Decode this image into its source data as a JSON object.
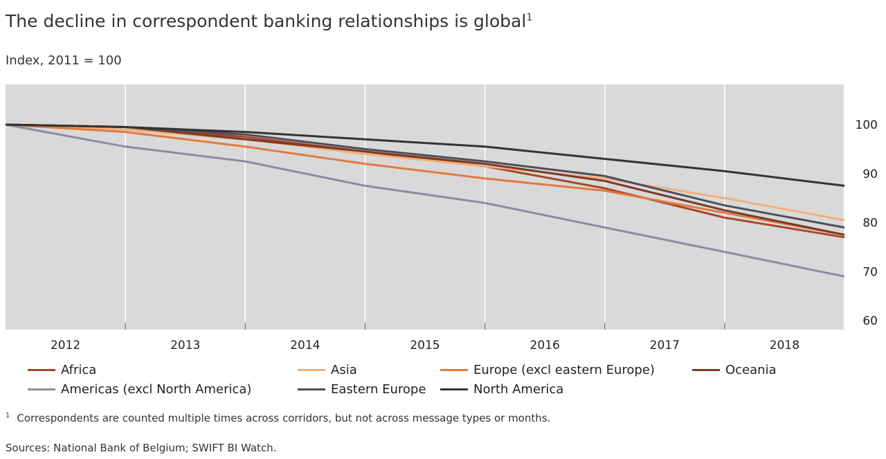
{
  "title": "The decline in correspondent banking relationships is global",
  "title_sup": "1",
  "subtitle": "Index, 2011 = 100",
  "footnote_marker": "1",
  "footnote": "Correspondents are counted multiple times across corridors, but not across message types or months.",
  "sources": "Sources: National Bank of Belgium; SWIFT BI Watch.",
  "chart_data": {
    "type": "line",
    "x_ticks": [
      "2012",
      "2013",
      "2014",
      "2015",
      "2016",
      "2017",
      "2018"
    ],
    "y_ticks": [
      "100",
      "90",
      "80",
      "70",
      "60"
    ],
    "xlim": [
      2011.0,
      2018.0
    ],
    "ylim": [
      60,
      105
    ],
    "grid": true,
    "background": "#d9d9d9",
    "legend_position": "bottom",
    "series": [
      {
        "name": "Africa",
        "color": "#a8472a",
        "x": [
          2011.0,
          2012.0,
          2013.0,
          2014.0,
          2015.0,
          2016.0,
          2017.0,
          2018.0
        ],
        "y": [
          100,
          99.5,
          97.5,
          94.5,
          91.5,
          87,
          81,
          77
        ]
      },
      {
        "name": "Asia",
        "color": "#f0b07a",
        "x": [
          2011.0,
          2012.0,
          2013.0,
          2014.0,
          2015.0,
          2016.0,
          2017.0,
          2018.0
        ],
        "y": [
          100,
          99,
          97,
          94,
          91.5,
          89,
          85,
          80.5
        ]
      },
      {
        "name": "Europe (excl eastern Europe)",
        "color": "#e07b3f",
        "x": [
          2011.0,
          2012.0,
          2013.0,
          2014.0,
          2015.0,
          2016.0,
          2017.0,
          2018.0
        ],
        "y": [
          100,
          98.5,
          95.5,
          92,
          89,
          86.5,
          82,
          77.5
        ]
      },
      {
        "name": "Oceania",
        "color": "#7b3a26",
        "x": [
          2011.0,
          2012.0,
          2013.0,
          2014.0,
          2015.0,
          2016.0,
          2017.0,
          2018.0
        ],
        "y": [
          100,
          99.5,
          97,
          94.5,
          92,
          88.5,
          82.5,
          77.5
        ]
      },
      {
        "name": "Americas (excl North America)",
        "color": "#8c8ca0",
        "x": [
          2011.0,
          2012.0,
          2013.0,
          2014.0,
          2015.0,
          2016.0,
          2017.0,
          2018.0
        ],
        "y": [
          100,
          95.5,
          92.5,
          87.5,
          84,
          79,
          74,
          69
        ]
      },
      {
        "name": "Eastern Europe",
        "color": "#4b4e5a",
        "x": [
          2011.0,
          2012.0,
          2013.0,
          2014.0,
          2015.0,
          2016.0,
          2017.0,
          2018.0
        ],
        "y": [
          100,
          99.5,
          98,
          95,
          92.5,
          89.5,
          83.5,
          79
        ]
      },
      {
        "name": "North America",
        "color": "#333333",
        "x": [
          2011.0,
          2012.0,
          2013.0,
          2014.0,
          2015.0,
          2016.0,
          2017.0,
          2018.0
        ],
        "y": [
          100,
          99.5,
          98.5,
          97,
          95.5,
          93,
          90.5,
          87.5
        ]
      }
    ]
  }
}
